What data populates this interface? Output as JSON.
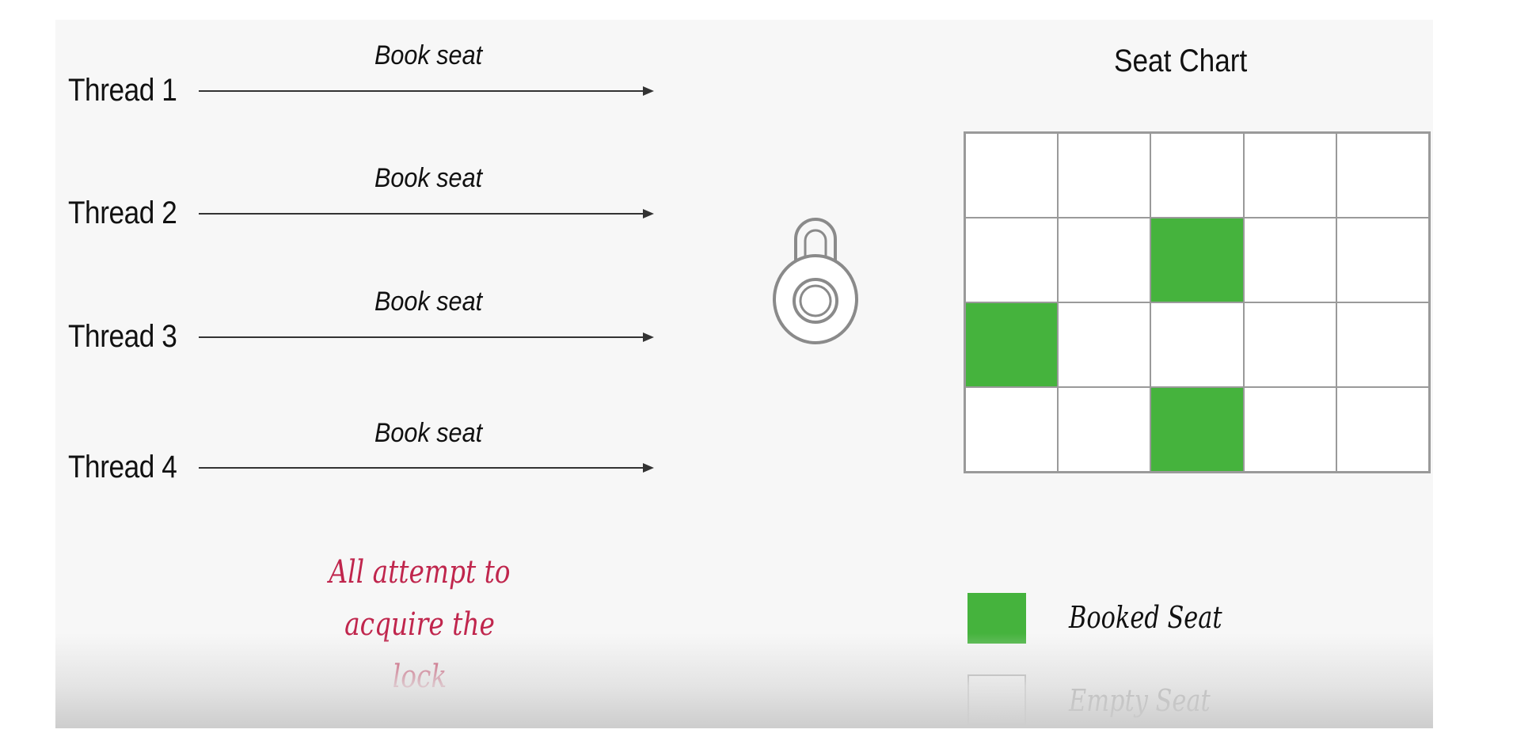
{
  "threads": [
    {
      "label": "Thread 1",
      "action": "Book seat"
    },
    {
      "label": "Thread 2",
      "action": "Book seat"
    },
    {
      "label": "Thread 3",
      "action": "Book seat"
    },
    {
      "label": "Thread 4",
      "action": "Book seat"
    }
  ],
  "note": {
    "line1": "All attempt to",
    "line2": "acquire the lock"
  },
  "lock": {
    "icon": "padlock-icon"
  },
  "seat_chart": {
    "title": "Seat Chart",
    "rows": 4,
    "cols": 5,
    "booked": [
      [
        1,
        2
      ],
      [
        2,
        0
      ],
      [
        3,
        2
      ]
    ]
  },
  "legend": {
    "booked_label": "Booked Seat",
    "empty_label": "Empty Seat"
  },
  "colors": {
    "booked": "#45b33d",
    "empty": "#ffffff",
    "note": "#c0264d",
    "arrow": "#333333"
  }
}
